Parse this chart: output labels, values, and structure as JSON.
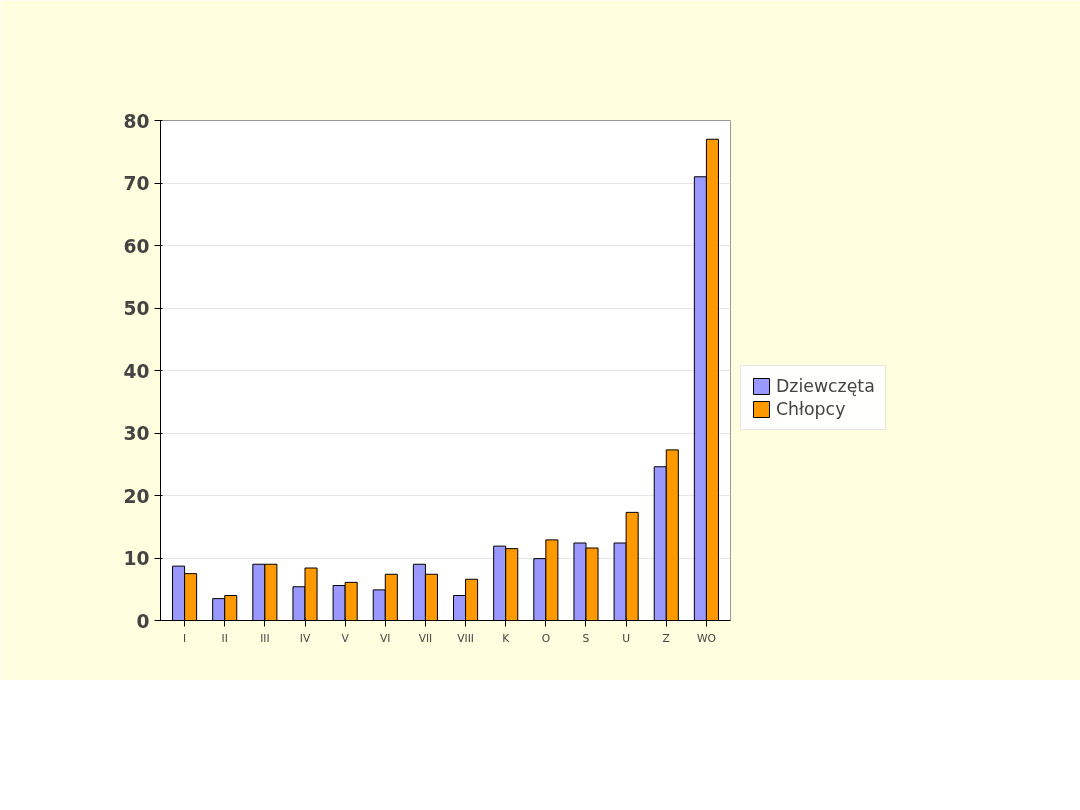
{
  "chart_data": {
    "type": "bar",
    "categories": [
      "I",
      "II",
      "III",
      "IV",
      "V",
      "VI",
      "VII",
      "VIII",
      "K",
      "O",
      "S",
      "U",
      "Z",
      "WO"
    ],
    "series": [
      {
        "name": "Dziewczęta",
        "color": "#9999ff",
        "values": [
          8.7,
          3.5,
          9.0,
          5.4,
          5.6,
          4.9,
          9.0,
          4.0,
          11.9,
          9.9,
          12.4,
          12.4,
          24.6,
          71
        ]
      },
      {
        "name": "Chłopcy",
        "color": "#ff9900",
        "values": [
          7.5,
          4.0,
          9.0,
          8.4,
          6.1,
          7.4,
          7.4,
          6.6,
          11.5,
          12.9,
          11.6,
          17.3,
          27.3,
          77
        ]
      }
    ],
    "ylim": [
      0,
      80
    ],
    "yticks": [
      0,
      10,
      20,
      30,
      40,
      50,
      60,
      70,
      80
    ],
    "grid": "y",
    "legend": "right"
  }
}
